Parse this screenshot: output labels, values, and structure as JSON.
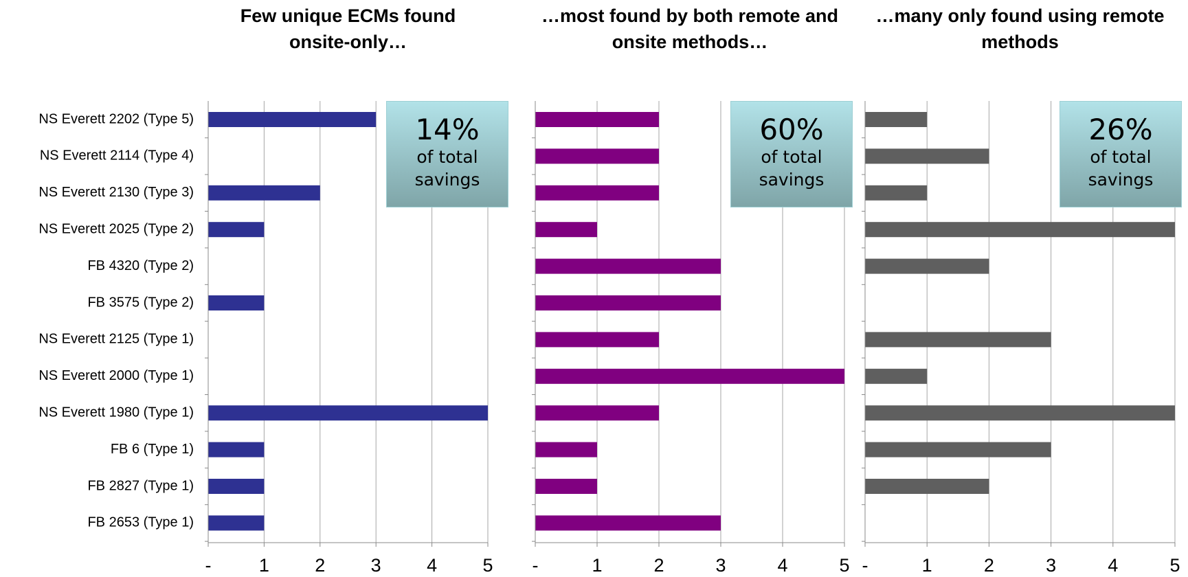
{
  "chart_data": [
    {
      "type": "bar",
      "orientation": "horizontal",
      "title": "Few unique ECMs found onsite-only…",
      "categories": [
        "NS Everett 2202 (Type 5)",
        "NS Everett 2114 (Type 4)",
        "NS Everett 2130 (Type 3)",
        "NS Everett 2025 (Type 2)",
        "FB 4320 (Type 2)",
        "FB 3575 (Type 2)",
        "NS Everett 2125 (Type 1)",
        "NS Everett 2000 (Type 1)",
        "NS Everett 1980 (Type 1)",
        "FB 6 (Type 1)",
        "FB 2827 (Type 1)",
        "FB 2653 (Type 1)"
      ],
      "values": [
        3,
        0,
        2,
        1,
        0,
        1,
        0,
        0,
        5,
        1,
        1,
        1
      ],
      "color": "#2e3192",
      "xlim": [
        0,
        5
      ],
      "xticks": [
        {
          "value": 0,
          "label": "-"
        },
        1,
        2,
        3,
        4,
        5
      ],
      "grid": true,
      "annotation": {
        "percent": "14%",
        "text": "of total savings"
      }
    },
    {
      "type": "bar",
      "orientation": "horizontal",
      "title": "…most found by both remote and onsite methods…",
      "values": [
        2,
        2,
        2,
        1,
        3,
        3,
        2,
        5,
        2,
        1,
        1,
        3
      ],
      "color": "#800080",
      "xlim": [
        0,
        5
      ],
      "xticks": [
        {
          "value": 0,
          "label": "-"
        },
        1,
        2,
        3,
        4,
        5
      ],
      "grid": true,
      "annotation": {
        "percent": "60%",
        "text": "of total savings"
      }
    },
    {
      "type": "bar",
      "orientation": "horizontal",
      "title": "…many only found using remote methods",
      "values": [
        1,
        2,
        1,
        5,
        2,
        0,
        3,
        1,
        5,
        3,
        2,
        0
      ],
      "color": "#5f5f5f",
      "xlim": [
        0,
        5
      ],
      "xticks": [
        {
          "value": 0,
          "label": "-"
        },
        1,
        2,
        3,
        4,
        5
      ],
      "grid": true,
      "annotation": {
        "percent": "26%",
        "text": "of total savings"
      }
    }
  ]
}
